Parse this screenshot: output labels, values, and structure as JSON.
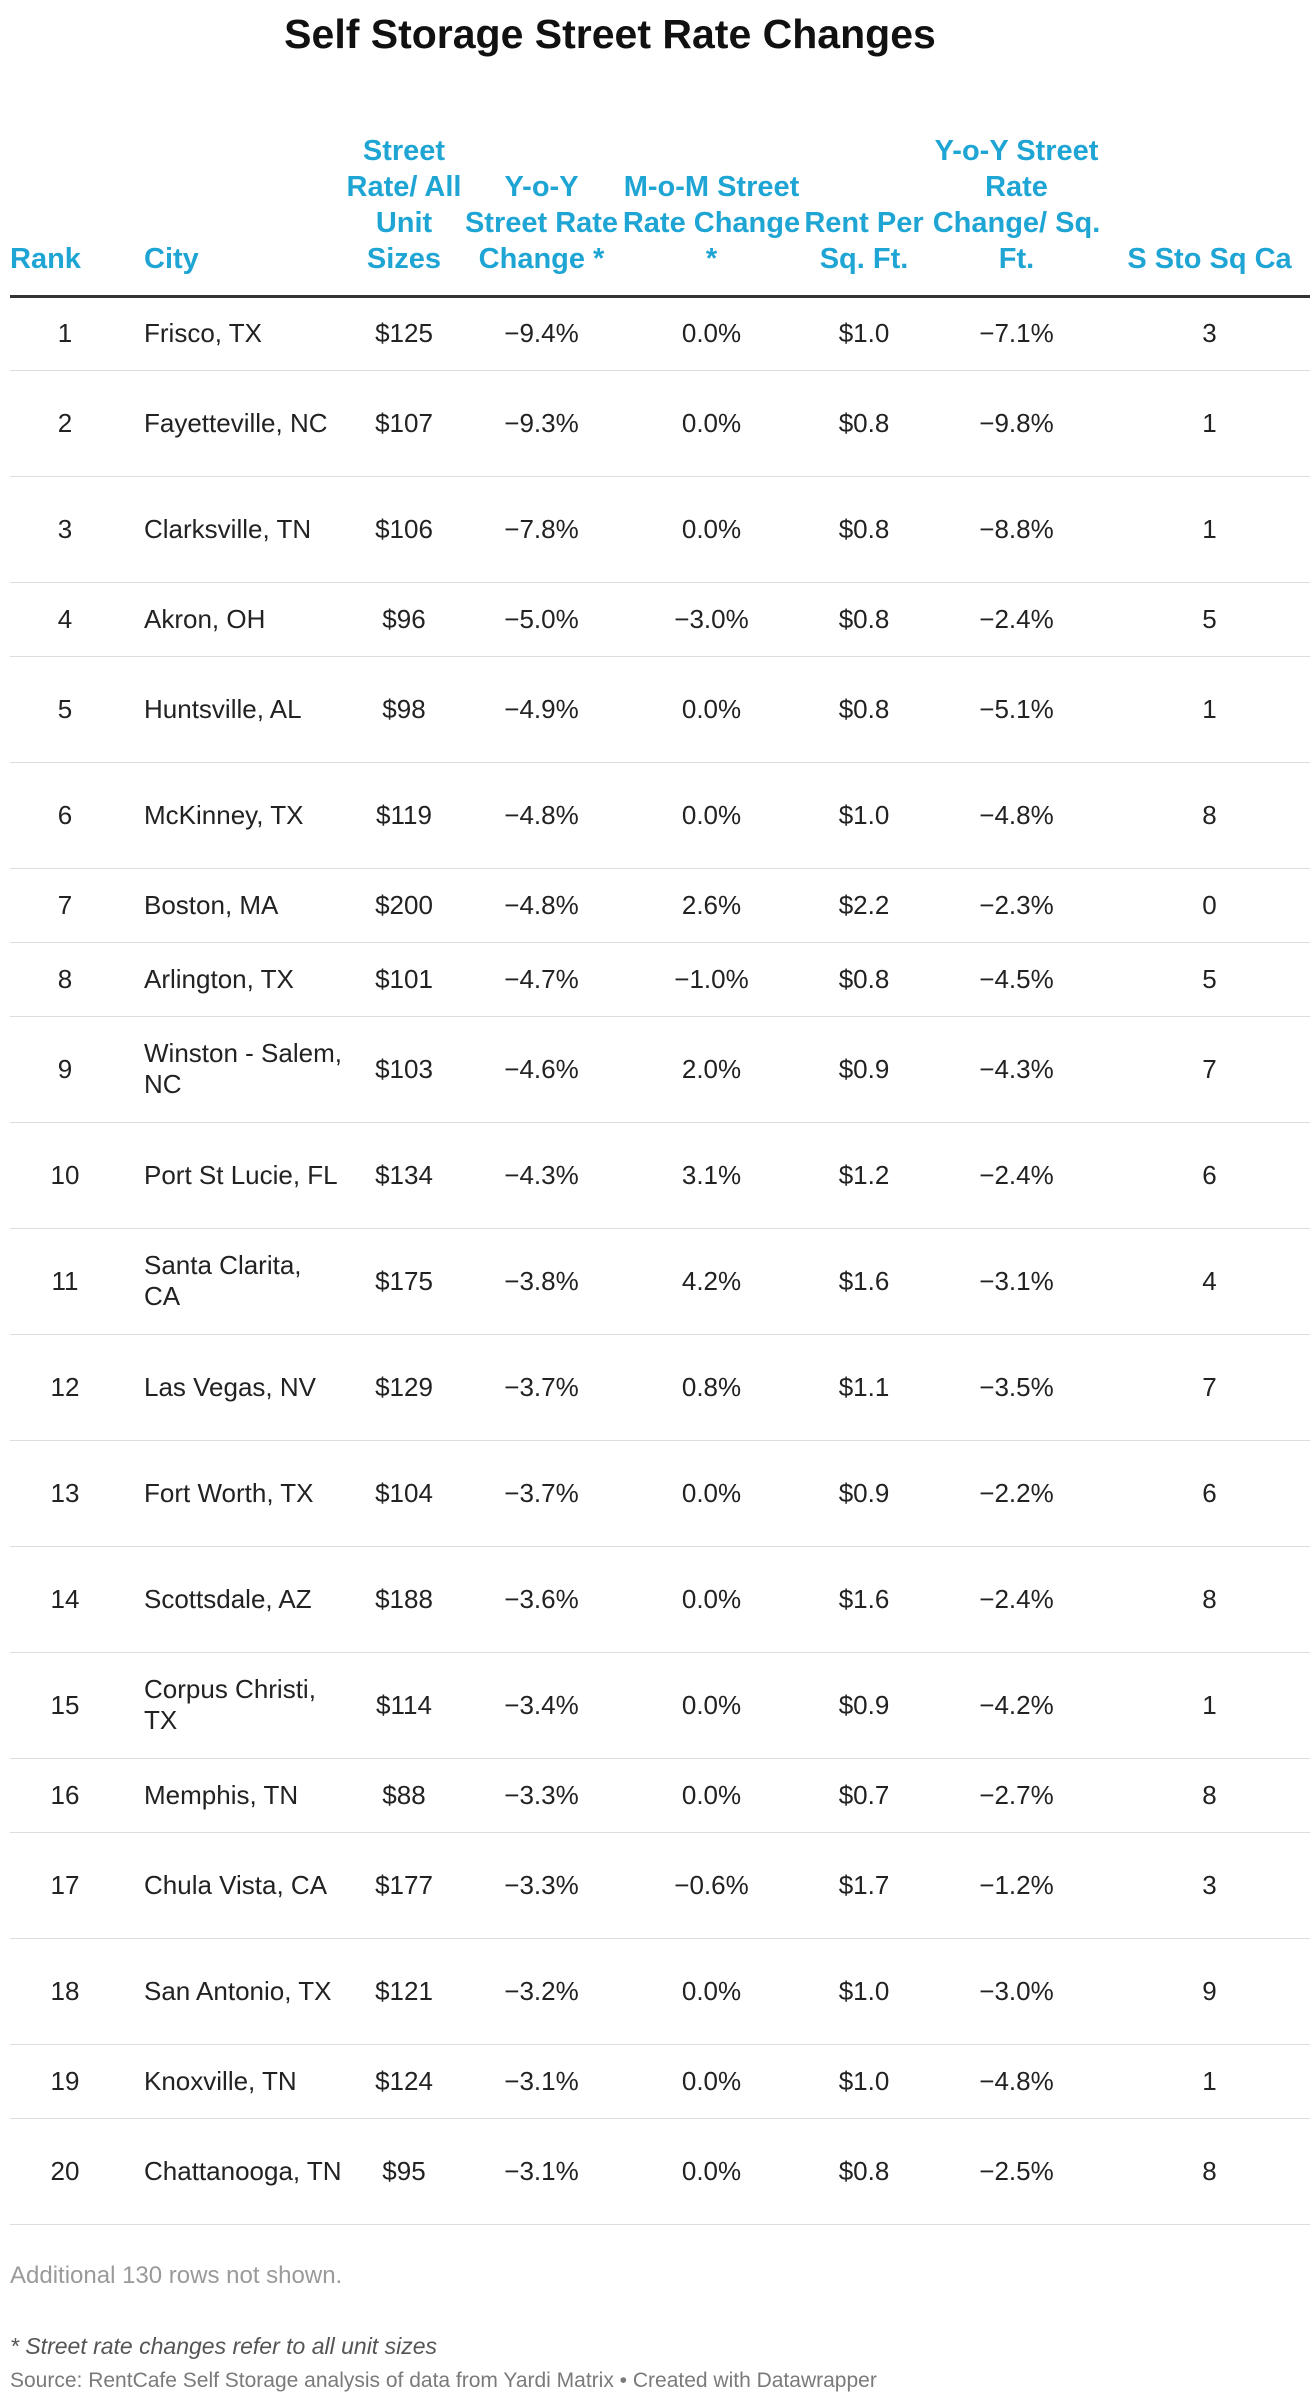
{
  "title": "Self Storage Street Rate Changes",
  "columns": [
    {
      "label": "Rank"
    },
    {
      "label": "City"
    },
    {
      "label": "Street Rate/ All Unit Sizes"
    },
    {
      "label": "Y-o-Y Street Rate Change *"
    },
    {
      "label": "M-o-M Street Rate Change *"
    },
    {
      "label": "Rent Per Sq. Ft."
    },
    {
      "label": "Y-o-Y Street Rate Change/ Sq. Ft."
    },
    {
      "label": "S Sto Sq Ca"
    }
  ],
  "rows": [
    {
      "rank": "1",
      "city": "Frisco, TX",
      "rate": "$125",
      "yoy": "−9.4%",
      "mom": "0.0%",
      "psf": "$1.0",
      "yoy_sqft": "−7.1%",
      "cap": "3"
    },
    {
      "rank": "2",
      "city": "Fayetteville, NC",
      "rate": "$107",
      "yoy": "−9.3%",
      "mom": "0.0%",
      "psf": "$0.8",
      "yoy_sqft": "−9.8%",
      "cap": "1"
    },
    {
      "rank": "3",
      "city": "Clarksville, TN",
      "rate": "$106",
      "yoy": "−7.8%",
      "mom": "0.0%",
      "psf": "$0.8",
      "yoy_sqft": "−8.8%",
      "cap": "1"
    },
    {
      "rank": "4",
      "city": "Akron, OH",
      "rate": "$96",
      "yoy": "−5.0%",
      "mom": "−3.0%",
      "psf": "$0.8",
      "yoy_sqft": "−2.4%",
      "cap": "5"
    },
    {
      "rank": "5",
      "city": "Huntsville, AL",
      "rate": "$98",
      "yoy": "−4.9%",
      "mom": "0.0%",
      "psf": "$0.8",
      "yoy_sqft": "−5.1%",
      "cap": "1"
    },
    {
      "rank": "6",
      "city": "McKinney, TX",
      "rate": "$119",
      "yoy": "−4.8%",
      "mom": "0.0%",
      "psf": "$1.0",
      "yoy_sqft": "−4.8%",
      "cap": "8"
    },
    {
      "rank": "7",
      "city": "Boston, MA",
      "rate": "$200",
      "yoy": "−4.8%",
      "mom": "2.6%",
      "psf": "$2.2",
      "yoy_sqft": "−2.3%",
      "cap": "0"
    },
    {
      "rank": "8",
      "city": "Arlington, TX",
      "rate": "$101",
      "yoy": "−4.7%",
      "mom": "−1.0%",
      "psf": "$0.8",
      "yoy_sqft": "−4.5%",
      "cap": "5"
    },
    {
      "rank": "9",
      "city": "Winston - Salem, NC",
      "rate": "$103",
      "yoy": "−4.6%",
      "mom": "2.0%",
      "psf": "$0.9",
      "yoy_sqft": "−4.3%",
      "cap": "7"
    },
    {
      "rank": "10",
      "city": "Port St Lucie, FL",
      "rate": "$134",
      "yoy": "−4.3%",
      "mom": "3.1%",
      "psf": "$1.2",
      "yoy_sqft": "−2.4%",
      "cap": "6"
    },
    {
      "rank": "11",
      "city": "Santa Clarita, CA",
      "rate": "$175",
      "yoy": "−3.8%",
      "mom": "4.2%",
      "psf": "$1.6",
      "yoy_sqft": "−3.1%",
      "cap": "4"
    },
    {
      "rank": "12",
      "city": "Las Vegas, NV",
      "rate": "$129",
      "yoy": "−3.7%",
      "mom": "0.8%",
      "psf": "$1.1",
      "yoy_sqft": "−3.5%",
      "cap": "7"
    },
    {
      "rank": "13",
      "city": "Fort Worth, TX",
      "rate": "$104",
      "yoy": "−3.7%",
      "mom": "0.0%",
      "psf": "$0.9",
      "yoy_sqft": "−2.2%",
      "cap": "6"
    },
    {
      "rank": "14",
      "city": "Scottsdale, AZ",
      "rate": "$188",
      "yoy": "−3.6%",
      "mom": "0.0%",
      "psf": "$1.6",
      "yoy_sqft": "−2.4%",
      "cap": "8"
    },
    {
      "rank": "15",
      "city": "Corpus Christi, TX",
      "rate": "$114",
      "yoy": "−3.4%",
      "mom": "0.0%",
      "psf": "$0.9",
      "yoy_sqft": "−4.2%",
      "cap": "1"
    },
    {
      "rank": "16",
      "city": "Memphis, TN",
      "rate": "$88",
      "yoy": "−3.3%",
      "mom": "0.0%",
      "psf": "$0.7",
      "yoy_sqft": "−2.7%",
      "cap": "8"
    },
    {
      "rank": "17",
      "city": "Chula Vista, CA",
      "rate": "$177",
      "yoy": "−3.3%",
      "mom": "−0.6%",
      "psf": "$1.7",
      "yoy_sqft": "−1.2%",
      "cap": "3"
    },
    {
      "rank": "18",
      "city": "San Antonio, TX",
      "rate": "$121",
      "yoy": "−3.2%",
      "mom": "0.0%",
      "psf": "$1.0",
      "yoy_sqft": "−3.0%",
      "cap": "9"
    },
    {
      "rank": "19",
      "city": "Knoxville, TN",
      "rate": "$124",
      "yoy": "−3.1%",
      "mom": "0.0%",
      "psf": "$1.0",
      "yoy_sqft": "−4.8%",
      "cap": "1"
    },
    {
      "rank": "20",
      "city": "Chattanooga, TN",
      "rate": "$95",
      "yoy": "−3.1%",
      "mom": "0.0%",
      "psf": "$0.8",
      "yoy_sqft": "−2.5%",
      "cap": "8"
    }
  ],
  "more_rows_note": "Additional 130 rows not shown.",
  "footnote": "* Street rate changes refer to all unit sizes",
  "source": "Source: RentCafe Self Storage analysis of data from Yardi Matrix • Created with Datawrapper",
  "colors": {
    "header": "#1fa5d4",
    "text": "#222222",
    "muted": "#9a9a9a"
  }
}
